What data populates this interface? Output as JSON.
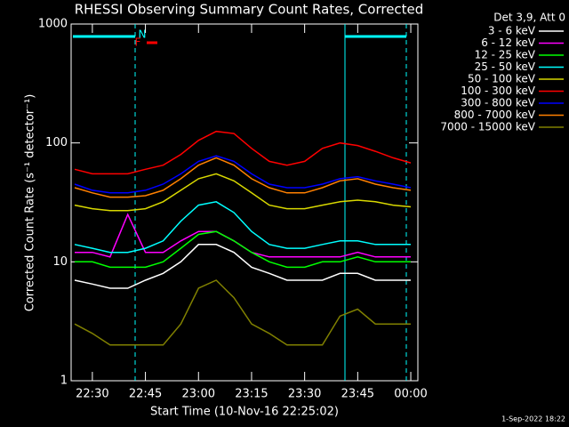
{
  "chart_data": {
    "type": "line",
    "title": "RHESSI Observing Summary Count Rates, Corrected",
    "y_label": "Corrected Count Rate (s⁻¹ detector⁻¹)",
    "x_label": "Start Time (10-Nov-16 22:25:02)",
    "legend_title": "Det 3,9, Att 0",
    "footer": "1-Sep-2022 18:22",
    "annotations": [
      "N",
      "F"
    ],
    "log_y": true,
    "legend": "outside-right",
    "x": [
      "22:25",
      "22:30",
      "22:35",
      "22:40",
      "22:45",
      "22:50",
      "22:55",
      "23:00",
      "23:05",
      "23:10",
      "23:15",
      "23:20",
      "23:25",
      "23:30",
      "23:35",
      "23:40",
      "23:45",
      "23:50",
      "23:55",
      "00:00"
    ],
    "xlim": [
      "22:24",
      "00:02"
    ],
    "xticks": [
      "22:30",
      "22:45",
      "23:00",
      "23:15",
      "23:30",
      "23:45",
      "00:00"
    ],
    "ylim": [
      1,
      1000
    ],
    "yticks": [
      1,
      10,
      100,
      1000
    ],
    "series": [
      {
        "name": "3 - 6 keV",
        "color": "#ffffff",
        "values": [
          7,
          6.5,
          6,
          6,
          7,
          8,
          10,
          14,
          14,
          12,
          9,
          8,
          7,
          7,
          7,
          8,
          8,
          7,
          7,
          7
        ]
      },
      {
        "name": "6 - 12 keV",
        "color": "#ff00ff",
        "values": [
          12,
          12,
          11,
          25,
          12,
          12,
          15,
          18,
          18,
          15,
          12,
          11,
          11,
          11,
          11,
          11,
          12,
          11,
          11,
          11
        ]
      },
      {
        "name": "12 - 25 keV",
        "color": "#00ff00",
        "values": [
          10,
          10,
          9,
          9,
          9,
          10,
          13,
          17,
          18,
          15,
          12,
          10,
          9,
          9,
          10,
          10,
          11,
          10,
          10,
          10
        ]
      },
      {
        "name": "25 - 50 keV",
        "color": "#00ffff",
        "values": [
          14,
          13,
          12,
          12,
          13,
          15,
          22,
          30,
          32,
          26,
          18,
          14,
          13,
          13,
          14,
          15,
          15,
          14,
          14,
          14
        ]
      },
      {
        "name": "50 - 100 keV",
        "color": "#d8d800",
        "values": [
          30,
          28,
          27,
          27,
          28,
          32,
          40,
          50,
          55,
          48,
          38,
          30,
          28,
          28,
          30,
          32,
          33,
          32,
          30,
          29
        ]
      },
      {
        "name": "100 - 300 keV",
        "color": "#ff0000",
        "values": [
          60,
          55,
          55,
          55,
          60,
          65,
          80,
          105,
          125,
          120,
          90,
          70,
          65,
          70,
          90,
          100,
          95,
          85,
          75,
          68
        ]
      },
      {
        "name": "300 - 800 keV",
        "color": "#0000ff",
        "values": [
          45,
          40,
          38,
          38,
          40,
          45,
          55,
          70,
          78,
          70,
          55,
          45,
          42,
          42,
          45,
          50,
          52,
          48,
          45,
          42
        ]
      },
      {
        "name": "800 - 7000 keV",
        "color": "#ff8000",
        "values": [
          42,
          38,
          35,
          35,
          36,
          40,
          50,
          65,
          75,
          65,
          50,
          42,
          38,
          38,
          42,
          48,
          50,
          45,
          42,
          40
        ]
      },
      {
        "name": "7000 - 15000 keV",
        "color": "#808000",
        "values": [
          3,
          2.5,
          2,
          2,
          2,
          2,
          3,
          6,
          7,
          5,
          3,
          2.5,
          2,
          2,
          2,
          3.5,
          4,
          3,
          3,
          3
        ]
      }
    ]
  }
}
